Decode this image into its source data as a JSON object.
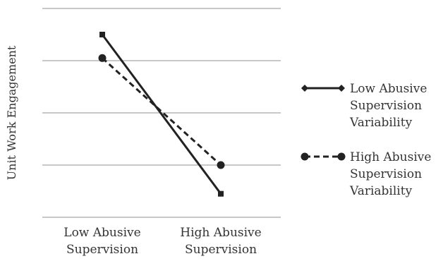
{
  "chart_data": {
    "type": "line",
    "title": "",
    "xlabel": "",
    "ylabel": "Unit Work Engagement",
    "y_tick_labels": "none",
    "grid": "horizontal",
    "legend_position": "right",
    "categories": [
      [
        "Low Abusive",
        "Supervision"
      ],
      [
        "High Abusive",
        "Supervision"
      ]
    ],
    "ylim": [
      0,
      4
    ],
    "series": [
      {
        "name": [
          "Low Abusive",
          "Supervision",
          "Variability"
        ],
        "values": [
          3.5,
          0.45
        ],
        "line_style": "solid",
        "marker": "diamond",
        "color": "#222222"
      },
      {
        "name": [
          "High Abusive",
          "Supervision",
          "Variability"
        ],
        "values": [
          3.05,
          1.0
        ],
        "line_style": "dashed",
        "marker": "circle",
        "color": "#222222"
      }
    ],
    "gridline_color": "#a6a6a6"
  }
}
